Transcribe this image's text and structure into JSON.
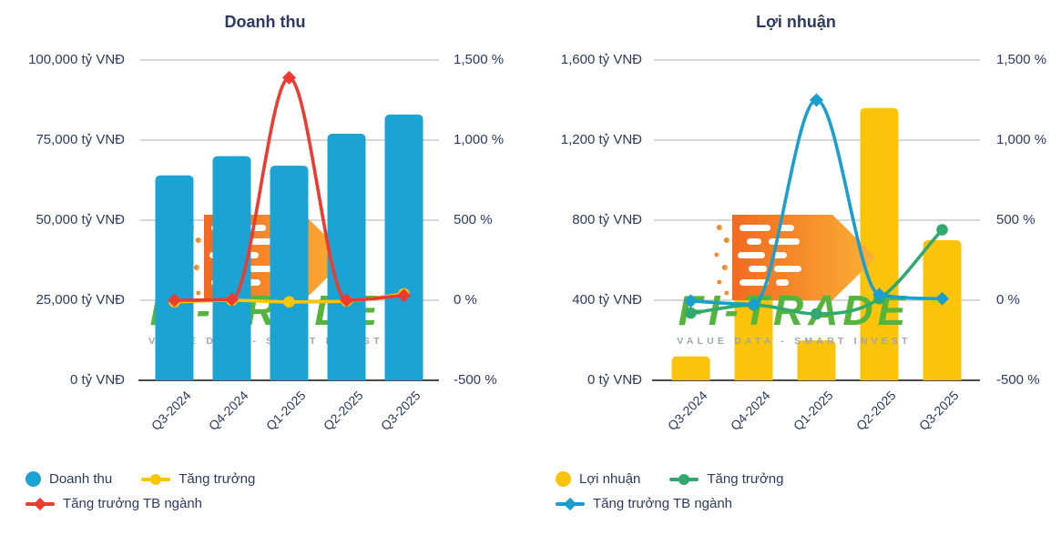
{
  "watermark": {
    "brand": "FI-TRADE",
    "tagline": "VALUE DATA - SMART INVEST",
    "brand_color": "#55B43B",
    "arrow_colors": [
      "#F26A21",
      "#FBB034"
    ]
  },
  "colors": {
    "text": "#2B3A64",
    "gridline": "#CCCCCC",
    "axis_line": "#4A4A4A"
  },
  "chart_data": [
    {
      "type": "bar",
      "title": "Doanh thu",
      "categories": [
        "Q3-2024",
        "Q4-2024",
        "Q1-2025",
        "Q2-2025",
        "Q3-2025"
      ],
      "left_axis": {
        "unit": "tỷ VNĐ",
        "min": 0,
        "max": 100000,
        "ticks": [
          "100,000 tỷ VNĐ",
          "75,000 tỷ VNĐ",
          "50,000 tỷ VNĐ",
          "25,000 tỷ VNĐ",
          "0 tỷ VNĐ"
        ]
      },
      "right_axis": {
        "unit": "%",
        "min": -500,
        "max": 1500,
        "ticks": [
          "1,500 %",
          "1,000 %",
          "500 %",
          "0 %",
          "-500 %"
        ]
      },
      "bar_series": {
        "name": "Doanh thu",
        "color": "#1BA3D4",
        "axis": "left",
        "values": [
          64000,
          70000,
          67000,
          77000,
          83000
        ]
      },
      "line_series": [
        {
          "name": "Tăng trưởng",
          "color": "#FDC500",
          "marker": "circle",
          "axis": "right",
          "values": [
            -10,
            0,
            -10,
            -5,
            40
          ]
        },
        {
          "name": "Tăng trưởng TB ngành",
          "color": "#EE3B31",
          "marker": "diamond",
          "axis": "right",
          "values": [
            0,
            5,
            1390,
            0,
            30
          ]
        }
      ],
      "legend": [
        "Doanh thu",
        "Tăng trưởng",
        "Tăng trưởng TB ngành"
      ],
      "grid": true,
      "legend_position": "bottom-left"
    },
    {
      "type": "bar",
      "title": "Lợi nhuận",
      "categories": [
        "Q3-2024",
        "Q4-2024",
        "Q1-2025",
        "Q2-2025",
        "Q3-2025"
      ],
      "left_axis": {
        "unit": "tỷ VNĐ",
        "min": 0,
        "max": 1600,
        "ticks": [
          "1,600 tỷ VNĐ",
          "1,200 tỷ VNĐ",
          "800 tỷ VNĐ",
          "400 tỷ VNĐ",
          "0 tỷ VNĐ"
        ]
      },
      "right_axis": {
        "unit": "%",
        "min": -500,
        "max": 1500,
        "ticks": [
          "1,500 %",
          "1,000 %",
          "500 %",
          "0 %",
          "-500 %"
        ]
      },
      "bar_series": {
        "name": "Lợi nhuận",
        "color": "#FCC30B",
        "axis": "left",
        "values": [
          120,
          600,
          200,
          1360,
          700
        ]
      },
      "line_series": [
        {
          "name": "Tăng trưởng",
          "color": "#2FA96E",
          "marker": "circle",
          "axis": "right",
          "values": [
            -80,
            -30,
            -85,
            10,
            440
          ]
        },
        {
          "name": "Tăng trưởng TB ngành",
          "color": "#189FD0",
          "marker": "diamond",
          "axis": "right",
          "values": [
            -5,
            -25,
            1250,
            35,
            10
          ]
        }
      ],
      "legend": [
        "Lợi nhuận",
        "Tăng trưởng",
        "Tăng trưởng TB ngành"
      ],
      "grid": true,
      "legend_position": "bottom-left"
    }
  ]
}
